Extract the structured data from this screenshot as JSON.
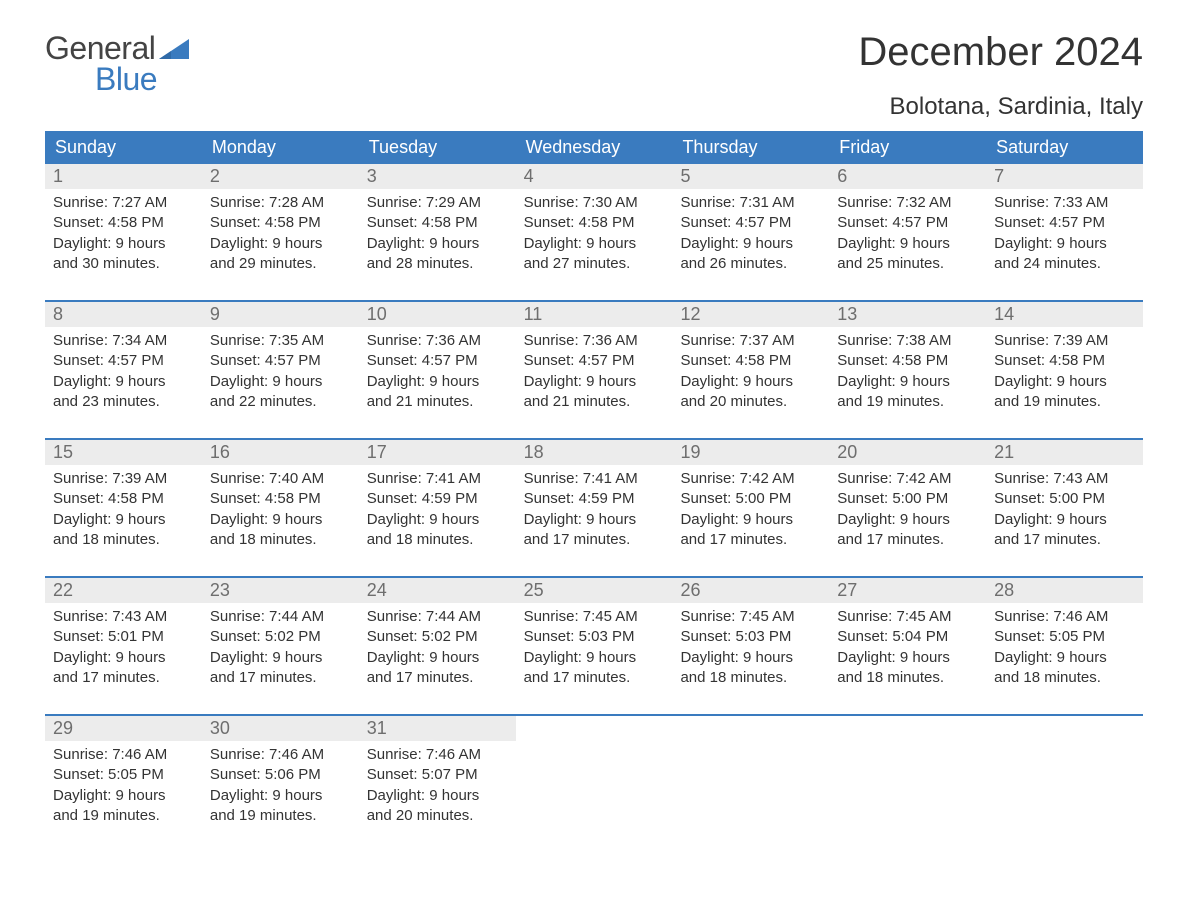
{
  "logo": {
    "general": "General",
    "blue": "Blue"
  },
  "title": "December 2024",
  "subtitle": "Bolotana, Sardinia, Italy",
  "colors": {
    "header_bg": "#3a7bbf",
    "header_text": "#ffffff",
    "daynum_bg": "#ececec",
    "daynum_text": "#6e6e6e",
    "week_border": "#3a7bbf",
    "body_text": "#333333",
    "logo_blue": "#3a7bbf",
    "logo_general": "#444444",
    "page_bg": "#ffffff"
  },
  "typography": {
    "title_fontsize": 40,
    "subtitle_fontsize": 24,
    "dow_fontsize": 18,
    "daynum_fontsize": 18,
    "body_fontsize": 15,
    "logo_fontsize": 32
  },
  "days_of_week": [
    "Sunday",
    "Monday",
    "Tuesday",
    "Wednesday",
    "Thursday",
    "Friday",
    "Saturday"
  ],
  "weeks": [
    [
      {
        "day": "1",
        "sunrise": "Sunrise: 7:27 AM",
        "sunset": "Sunset: 4:58 PM",
        "dl1": "Daylight: 9 hours",
        "dl2": "and 30 minutes."
      },
      {
        "day": "2",
        "sunrise": "Sunrise: 7:28 AM",
        "sunset": "Sunset: 4:58 PM",
        "dl1": "Daylight: 9 hours",
        "dl2": "and 29 minutes."
      },
      {
        "day": "3",
        "sunrise": "Sunrise: 7:29 AM",
        "sunset": "Sunset: 4:58 PM",
        "dl1": "Daylight: 9 hours",
        "dl2": "and 28 minutes."
      },
      {
        "day": "4",
        "sunrise": "Sunrise: 7:30 AM",
        "sunset": "Sunset: 4:58 PM",
        "dl1": "Daylight: 9 hours",
        "dl2": "and 27 minutes."
      },
      {
        "day": "5",
        "sunrise": "Sunrise: 7:31 AM",
        "sunset": "Sunset: 4:57 PM",
        "dl1": "Daylight: 9 hours",
        "dl2": "and 26 minutes."
      },
      {
        "day": "6",
        "sunrise": "Sunrise: 7:32 AM",
        "sunset": "Sunset: 4:57 PM",
        "dl1": "Daylight: 9 hours",
        "dl2": "and 25 minutes."
      },
      {
        "day": "7",
        "sunrise": "Sunrise: 7:33 AM",
        "sunset": "Sunset: 4:57 PM",
        "dl1": "Daylight: 9 hours",
        "dl2": "and 24 minutes."
      }
    ],
    [
      {
        "day": "8",
        "sunrise": "Sunrise: 7:34 AM",
        "sunset": "Sunset: 4:57 PM",
        "dl1": "Daylight: 9 hours",
        "dl2": "and 23 minutes."
      },
      {
        "day": "9",
        "sunrise": "Sunrise: 7:35 AM",
        "sunset": "Sunset: 4:57 PM",
        "dl1": "Daylight: 9 hours",
        "dl2": "and 22 minutes."
      },
      {
        "day": "10",
        "sunrise": "Sunrise: 7:36 AM",
        "sunset": "Sunset: 4:57 PM",
        "dl1": "Daylight: 9 hours",
        "dl2": "and 21 minutes."
      },
      {
        "day": "11",
        "sunrise": "Sunrise: 7:36 AM",
        "sunset": "Sunset: 4:57 PM",
        "dl1": "Daylight: 9 hours",
        "dl2": "and 21 minutes."
      },
      {
        "day": "12",
        "sunrise": "Sunrise: 7:37 AM",
        "sunset": "Sunset: 4:58 PM",
        "dl1": "Daylight: 9 hours",
        "dl2": "and 20 minutes."
      },
      {
        "day": "13",
        "sunrise": "Sunrise: 7:38 AM",
        "sunset": "Sunset: 4:58 PM",
        "dl1": "Daylight: 9 hours",
        "dl2": "and 19 minutes."
      },
      {
        "day": "14",
        "sunrise": "Sunrise: 7:39 AM",
        "sunset": "Sunset: 4:58 PM",
        "dl1": "Daylight: 9 hours",
        "dl2": "and 19 minutes."
      }
    ],
    [
      {
        "day": "15",
        "sunrise": "Sunrise: 7:39 AM",
        "sunset": "Sunset: 4:58 PM",
        "dl1": "Daylight: 9 hours",
        "dl2": "and 18 minutes."
      },
      {
        "day": "16",
        "sunrise": "Sunrise: 7:40 AM",
        "sunset": "Sunset: 4:58 PM",
        "dl1": "Daylight: 9 hours",
        "dl2": "and 18 minutes."
      },
      {
        "day": "17",
        "sunrise": "Sunrise: 7:41 AM",
        "sunset": "Sunset: 4:59 PM",
        "dl1": "Daylight: 9 hours",
        "dl2": "and 18 minutes."
      },
      {
        "day": "18",
        "sunrise": "Sunrise: 7:41 AM",
        "sunset": "Sunset: 4:59 PM",
        "dl1": "Daylight: 9 hours",
        "dl2": "and 17 minutes."
      },
      {
        "day": "19",
        "sunrise": "Sunrise: 7:42 AM",
        "sunset": "Sunset: 5:00 PM",
        "dl1": "Daylight: 9 hours",
        "dl2": "and 17 minutes."
      },
      {
        "day": "20",
        "sunrise": "Sunrise: 7:42 AM",
        "sunset": "Sunset: 5:00 PM",
        "dl1": "Daylight: 9 hours",
        "dl2": "and 17 minutes."
      },
      {
        "day": "21",
        "sunrise": "Sunrise: 7:43 AM",
        "sunset": "Sunset: 5:00 PM",
        "dl1": "Daylight: 9 hours",
        "dl2": "and 17 minutes."
      }
    ],
    [
      {
        "day": "22",
        "sunrise": "Sunrise: 7:43 AM",
        "sunset": "Sunset: 5:01 PM",
        "dl1": "Daylight: 9 hours",
        "dl2": "and 17 minutes."
      },
      {
        "day": "23",
        "sunrise": "Sunrise: 7:44 AM",
        "sunset": "Sunset: 5:02 PM",
        "dl1": "Daylight: 9 hours",
        "dl2": "and 17 minutes."
      },
      {
        "day": "24",
        "sunrise": "Sunrise: 7:44 AM",
        "sunset": "Sunset: 5:02 PM",
        "dl1": "Daylight: 9 hours",
        "dl2": "and 17 minutes."
      },
      {
        "day": "25",
        "sunrise": "Sunrise: 7:45 AM",
        "sunset": "Sunset: 5:03 PM",
        "dl1": "Daylight: 9 hours",
        "dl2": "and 17 minutes."
      },
      {
        "day": "26",
        "sunrise": "Sunrise: 7:45 AM",
        "sunset": "Sunset: 5:03 PM",
        "dl1": "Daylight: 9 hours",
        "dl2": "and 18 minutes."
      },
      {
        "day": "27",
        "sunrise": "Sunrise: 7:45 AM",
        "sunset": "Sunset: 5:04 PM",
        "dl1": "Daylight: 9 hours",
        "dl2": "and 18 minutes."
      },
      {
        "day": "28",
        "sunrise": "Sunrise: 7:46 AM",
        "sunset": "Sunset: 5:05 PM",
        "dl1": "Daylight: 9 hours",
        "dl2": "and 18 minutes."
      }
    ],
    [
      {
        "day": "29",
        "sunrise": "Sunrise: 7:46 AM",
        "sunset": "Sunset: 5:05 PM",
        "dl1": "Daylight: 9 hours",
        "dl2": "and 19 minutes."
      },
      {
        "day": "30",
        "sunrise": "Sunrise: 7:46 AM",
        "sunset": "Sunset: 5:06 PM",
        "dl1": "Daylight: 9 hours",
        "dl2": "and 19 minutes."
      },
      {
        "day": "31",
        "sunrise": "Sunrise: 7:46 AM",
        "sunset": "Sunset: 5:07 PM",
        "dl1": "Daylight: 9 hours",
        "dl2": "and 20 minutes."
      },
      {
        "empty": true
      },
      {
        "empty": true
      },
      {
        "empty": true
      },
      {
        "empty": true
      }
    ]
  ]
}
